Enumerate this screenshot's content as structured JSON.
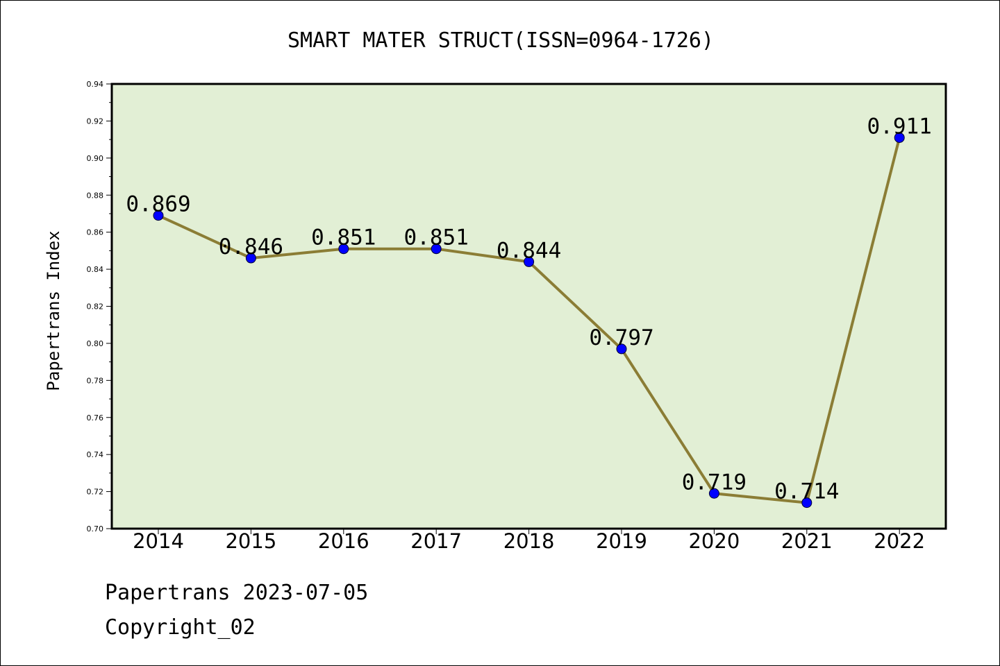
{
  "chart_data": {
    "type": "line",
    "title": "SMART MATER STRUCT(ISSN=0964-1726)",
    "xlabel": "",
    "ylabel": "Papertrans Index",
    "categories": [
      "2014",
      "2015",
      "2016",
      "2017",
      "2018",
      "2019",
      "2020",
      "2021",
      "2022"
    ],
    "series": [
      {
        "values": [
          0.869,
          0.846,
          0.851,
          0.851,
          0.844,
          0.797,
          0.719,
          0.714,
          0.911
        ],
        "labels": [
          "0.869",
          "0.846",
          "0.851",
          "0.851",
          "0.844",
          "0.797",
          "0.719",
          "0.714",
          "0.911"
        ]
      }
    ],
    "ylim": [
      0.7,
      0.94
    ],
    "yticks": [
      "0.70",
      "0.72",
      "0.74",
      "0.76",
      "0.78",
      "0.80",
      "0.82",
      "0.84",
      "0.86",
      "0.88",
      "0.90",
      "0.92",
      "0.94"
    ],
    "grid": false,
    "colors": {
      "plot_background": "#e2efd5",
      "line": "#8b7d35",
      "marker": "#0000ff"
    }
  },
  "footer": {
    "line1": "Papertrans 2023-07-05",
    "line2": "Copyright_02"
  }
}
